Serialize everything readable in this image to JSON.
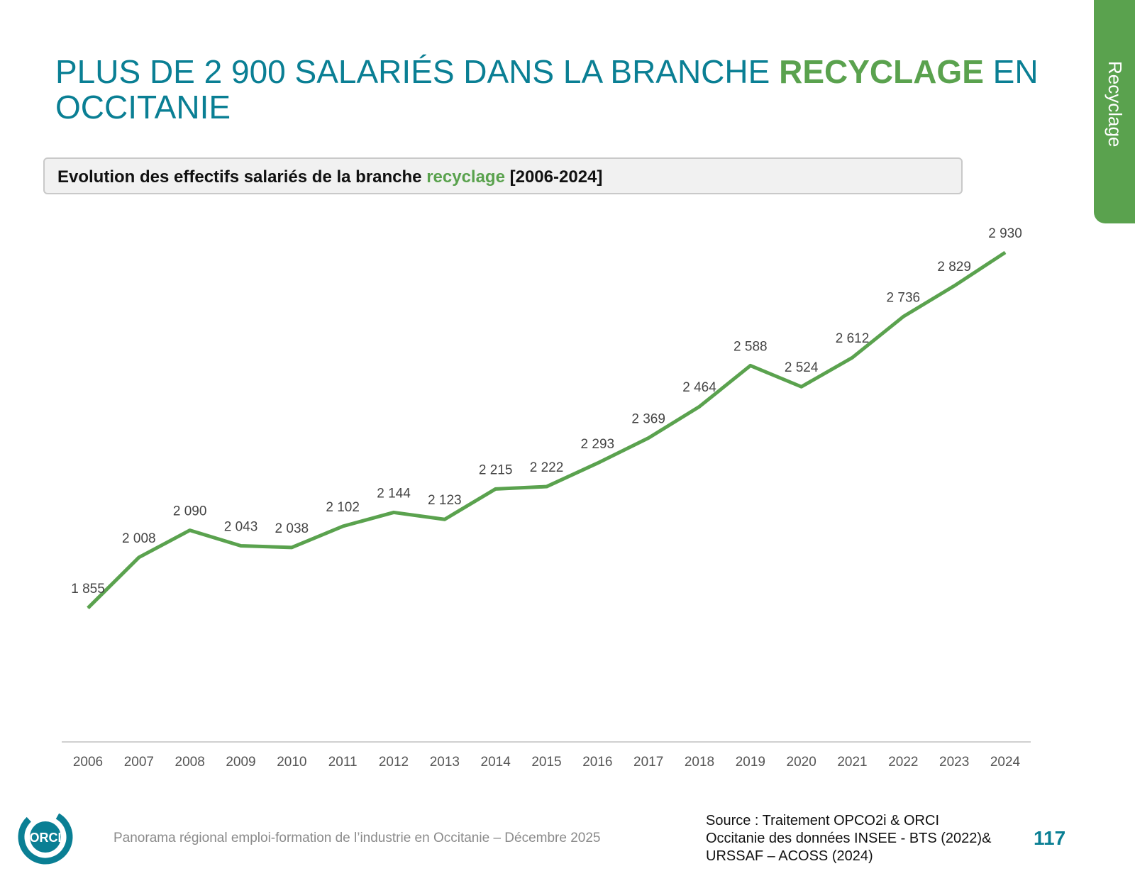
{
  "title": {
    "part1": "PLUS DE 2 900 SALARIÉS DANS LA BRANCHE ",
    "highlight": "RECYCLAGE",
    "part2": " EN OCCITANIE"
  },
  "subtitle": {
    "part1": "Evolution des effectifs salariés de la branche ",
    "highlight": "recyclage",
    "part2": " [2006-2024]"
  },
  "side_tab": "Recyclage",
  "footer": "Panorama régional emploi-formation de l’industrie en Occitanie – Décembre 2025",
  "source": [
    "Source : Traitement OPCO2i & ORCI",
    "Occitanie des données  INSEE - BTS (2022)&",
    "URSSAF – ACOSS (2024)"
  ],
  "page_number": "117",
  "logo_text": "ORCI",
  "colors": {
    "accent_teal": "#0a7f94",
    "accent_green": "#5aa24e"
  },
  "chart_data": {
    "type": "line",
    "categories": [
      "2006",
      "2007",
      "2008",
      "2009",
      "2010",
      "2011",
      "2012",
      "2013",
      "2014",
      "2015",
      "2016",
      "2017",
      "2018",
      "2019",
      "2020",
      "2021",
      "2022",
      "2023",
      "2024"
    ],
    "values": [
      1855,
      2008,
      2090,
      2043,
      2038,
      2102,
      2144,
      2123,
      2215,
      2222,
      2293,
      2369,
      2464,
      2588,
      2524,
      2612,
      2736,
      2829,
      2930
    ],
    "labels": [
      "1 855",
      "2 008",
      "2 090",
      "2 043",
      "2 038",
      "2 102",
      "2 144",
      "2 123",
      "2 215",
      "2 222",
      "2 293",
      "2 369",
      "2 464",
      "2 588",
      "2 524",
      "2 612",
      "2 736",
      "2 829",
      "2 930"
    ],
    "ylim": [
      1450,
      3050
    ],
    "grid": false,
    "color": "#5aa24e"
  }
}
